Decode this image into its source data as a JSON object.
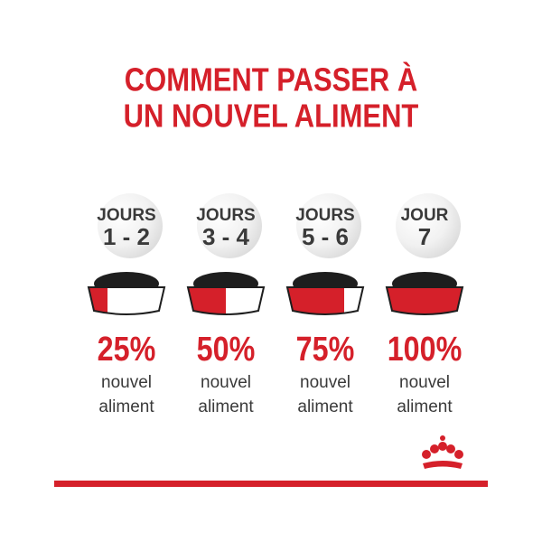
{
  "title": {
    "lines": [
      "COMMENT PASSER À",
      "UN NOUVEL ALIMENT"
    ]
  },
  "steps": [
    {
      "day_label": "JOURS",
      "days": "1 - 2",
      "percent": "25%",
      "caption": [
        "nouvel",
        "aliment"
      ]
    },
    {
      "day_label": "JOURS",
      "days": "3 - 4",
      "percent": "50%",
      "caption": [
        "nouvel",
        "aliment"
      ]
    },
    {
      "day_label": "JOURS",
      "days": "5 - 6",
      "percent": "75%",
      "caption": [
        "nouvel",
        "aliment"
      ]
    },
    {
      "day_label": "JOUR",
      "days": "7",
      "percent": "100%",
      "caption": [
        "nouvel",
        "aliment"
      ]
    }
  ]
}
